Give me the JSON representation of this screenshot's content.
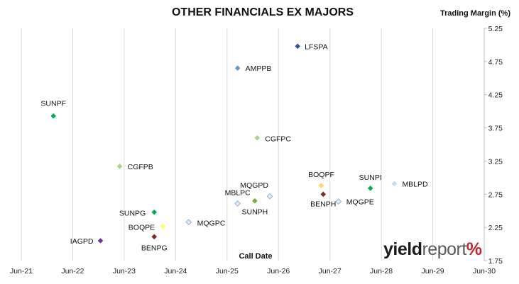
{
  "chart_data": {
    "type": "scatter",
    "title": "OTHER FINANCIALS EX MAJORS",
    "xlabel": "Call Date",
    "ylabel": "Trading Margin (%)",
    "x_ticks": [
      "Jun-21",
      "Jun-22",
      "Jun-23",
      "Jun-24",
      "Jun-25",
      "Jun-26",
      "Jun-27",
      "Jun-28",
      "Jun-29",
      "Jun-30"
    ],
    "xlim": [
      "2021-06-01",
      "2030-06-01"
    ],
    "y_ticks": [
      "1.75",
      "2.25",
      "2.75",
      "3.25",
      "3.75",
      "4.25",
      "4.75",
      "5.25"
    ],
    "ylim": [
      1.75,
      5.25
    ],
    "grid": "vertical",
    "points": [
      {
        "label": "LFSPA",
        "x": "2026-10-15",
        "y": 4.98,
        "color": "#2e5597",
        "style": "filled"
      },
      {
        "label": "AMPPB",
        "x": "2025-08-15",
        "y": 4.65,
        "color": "#5b9bd5",
        "style": "filled"
      },
      {
        "label": "SUNPF",
        "x": "2022-01-15",
        "y": 3.93,
        "color": "#00b050",
        "style": "filled"
      },
      {
        "label": "CGFPC",
        "x": "2026-01-01",
        "y": 3.6,
        "color": "#a9d18e",
        "style": "filled"
      },
      {
        "label": "CGFPB",
        "x": "2023-05-01",
        "y": 3.17,
        "color": "#a9d18e",
        "style": "filled"
      },
      {
        "label": "BOQPF",
        "x": "2027-04-01",
        "y": 2.88,
        "color": "#ffd966",
        "style": "filled"
      },
      {
        "label": "SUNPI",
        "x": "2028-03-15",
        "y": 2.84,
        "color": "#00b050",
        "style": "filled"
      },
      {
        "label": "MBLPD",
        "x": "2028-09-01",
        "y": 2.91,
        "color": "#c5d9f1",
        "style": "filled"
      },
      {
        "label": "MQGPD",
        "x": "2026-04-01",
        "y": 2.72,
        "color": "#ddebf7",
        "style": "hollow"
      },
      {
        "label": "MBLPC",
        "x": "2025-08-15",
        "y": 2.61,
        "color": "#ddebf7",
        "style": "hollow"
      },
      {
        "label": "SUNPH",
        "x": "2025-12-15",
        "y": 2.65,
        "color": "#70ad47",
        "style": "filled"
      },
      {
        "label": "BENPH",
        "x": "2027-04-15",
        "y": 2.75,
        "color": "#7b2c2c",
        "style": "filled"
      },
      {
        "label": "MQGPE",
        "x": "2027-08-01",
        "y": 2.64,
        "color": "#ddebf7",
        "style": "hollow"
      },
      {
        "label": "SUNPG",
        "x": "2024-01-01",
        "y": 2.48,
        "color": "#00b050",
        "style": "filled"
      },
      {
        "label": "MQGPC",
        "x": "2024-09-01",
        "y": 2.33,
        "color": "#ddebf7",
        "style": "hollow"
      },
      {
        "label": "BOQPE",
        "x": "2024-03-01",
        "y": 2.27,
        "color": "#ffff66",
        "style": "filled"
      },
      {
        "label": "BENPG",
        "x": "2024-01-01",
        "y": 2.11,
        "color": "#7b2c2c",
        "style": "filled"
      },
      {
        "label": "IAGPD",
        "x": "2022-12-15",
        "y": 2.05,
        "color": "#7030a0",
        "style": "filled"
      }
    ]
  },
  "brand": {
    "word1": "yield",
    "word2": "report",
    "symbol": "%"
  }
}
